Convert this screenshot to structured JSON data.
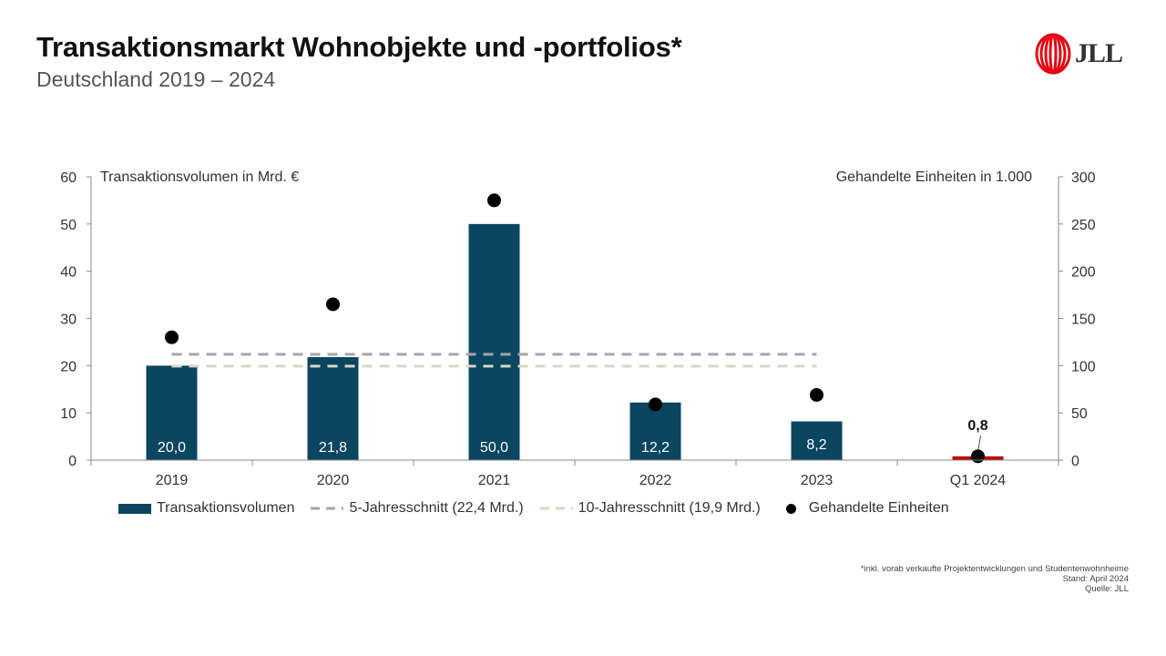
{
  "header": {
    "title": "Transaktionsmarkt Wohnobjekte und -portfolios*",
    "subtitle": "Deutschland 2019 – 2024",
    "logo_text": "JLL"
  },
  "colors": {
    "bar": "#0b4660",
    "bar_highlight": "#c00000",
    "avg5": "#a6a6a6",
    "avg10": "#d9d7c6",
    "dots": "#000000"
  },
  "chart_data": {
    "type": "bar",
    "categories": [
      "2019",
      "2020",
      "2021",
      "2022",
      "2023",
      "Q1 2024"
    ],
    "series": [
      {
        "name": "Transaktionsvolumen",
        "axis": "left",
        "values": [
          20.0,
          21.8,
          50.0,
          12.2,
          8.2,
          0.8
        ],
        "labels": [
          "20,0",
          "21,8",
          "50,0",
          "12,2",
          "8,2",
          "0,8"
        ]
      },
      {
        "name": "Gehandelte Einheiten",
        "axis": "right",
        "type": "scatter",
        "values": [
          130,
          165,
          275,
          59,
          69,
          4
        ]
      },
      {
        "name": "5-Jahresschnitt (22,4 Mrd.)",
        "axis": "left",
        "type": "line",
        "dash": true,
        "value": 22.4
      },
      {
        "name": "10-Jahresschnitt (19,9 Mrd.)",
        "axis": "left",
        "type": "line",
        "dash": true,
        "value": 19.9
      }
    ],
    "ylabel_left": "Transaktionsvolumen in Mrd. €",
    "ylabel_right": "Gehandelte Einheiten in 1.000",
    "ylim_left": [
      0,
      60
    ],
    "yticks_left": [
      "0",
      "10",
      "20",
      "30",
      "40",
      "50",
      "60"
    ],
    "ylim_right": [
      0,
      300
    ],
    "yticks_right": [
      "0",
      "50",
      "100",
      "150",
      "200",
      "250",
      "300"
    ],
    "grid": false,
    "legend_position": "bottom"
  },
  "legend": {
    "volume": "Transaktionsvolumen",
    "avg5": "5-Jahresschnitt (22,4 Mrd.)",
    "avg10": "10-Jahresschnitt (19,9 Mrd.)",
    "units": "Gehandelte Einheiten"
  },
  "footnote": {
    "line1": "*inkl. vorab verkaufte Projektentwicklungen und Studentenwohnheime",
    "line2": "Stand: April 2024",
    "line3": "Quelle: JLL"
  }
}
